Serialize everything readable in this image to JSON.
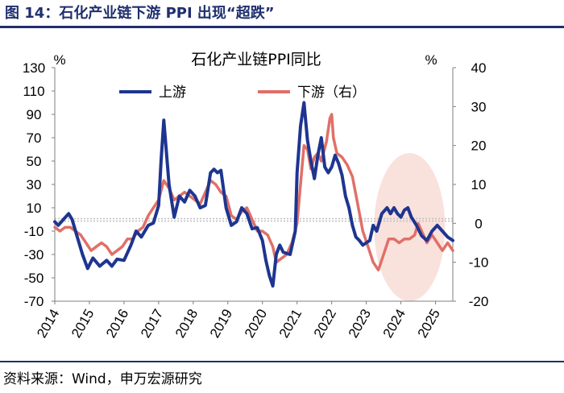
{
  "figure_title": "图 14：石化产业链下游 PPI 出现“超跌”",
  "source": "资料来源：Wind，申万宏源研究",
  "colors": {
    "upstream": "#1e3590",
    "downstream": "#e07068",
    "ellipse": "#f9e1dc",
    "frame": "#1f2f6e"
  },
  "chart_data": {
    "type": "line",
    "title": "石化产业链PPI同比",
    "y_left_unit": "%",
    "y_right_unit": "%",
    "x_ticks": [
      "2014",
      "2015",
      "2016",
      "2017",
      "2018",
      "2019",
      "2020",
      "2021",
      "2022",
      "2023",
      "2024",
      "2025"
    ],
    "x_range": [
      2014.0,
      2025.5
    ],
    "y_left": {
      "range": [
        -70,
        130
      ],
      "ticks": [
        130,
        110,
        90,
        70,
        50,
        30,
        10,
        -10,
        -30,
        -50,
        -70
      ]
    },
    "y_right": {
      "range": [
        -20,
        40
      ],
      "ticks": [
        40,
        30,
        20,
        10,
        0,
        -10,
        -20
      ]
    },
    "series": [
      {
        "name": "上游",
        "axis": "left",
        "x": [
          2014.0,
          2014.1,
          2014.25,
          2014.4,
          2014.5,
          2014.65,
          2014.8,
          2014.95,
          2015.1,
          2015.3,
          2015.5,
          2015.65,
          2015.8,
          2016.0,
          2016.2,
          2016.35,
          2016.5,
          2016.7,
          2016.85,
          2017.0,
          2017.07,
          2017.15,
          2017.3,
          2017.45,
          2017.6,
          2017.75,
          2017.9,
          2018.05,
          2018.2,
          2018.35,
          2018.5,
          2018.6,
          2018.7,
          2018.8,
          2018.95,
          2019.1,
          2019.25,
          2019.4,
          2019.55,
          2019.7,
          2019.85,
          2020.0,
          2020.1,
          2020.2,
          2020.3,
          2020.4,
          2020.5,
          2020.6,
          2020.8,
          2020.95,
          2021.0,
          2021.1,
          2021.2,
          2021.3,
          2021.4,
          2021.5,
          2021.6,
          2021.7,
          2021.8,
          2021.9,
          2022.0,
          2022.1,
          2022.2,
          2022.3,
          2022.4,
          2022.5,
          2022.6,
          2022.7,
          2022.8,
          2022.9,
          2023.0,
          2023.1,
          2023.2,
          2023.3,
          2023.45,
          2023.6,
          2023.7,
          2023.8,
          2023.9,
          2024.0,
          2024.1,
          2024.2,
          2024.3,
          2024.45,
          2024.6,
          2024.75,
          2024.9,
          2025.05,
          2025.2,
          2025.35,
          2025.5
        ],
        "values": [
          -2,
          -5,
          0,
          5,
          0,
          -15,
          -30,
          -42,
          -33,
          -40,
          -35,
          -40,
          -34,
          -35,
          -22,
          -10,
          -15,
          -5,
          -3,
          12,
          50,
          85,
          30,
          2,
          20,
          15,
          25,
          20,
          10,
          12,
          40,
          43,
          40,
          42,
          10,
          -5,
          -2,
          10,
          5,
          -8,
          -7,
          -18,
          -35,
          -48,
          -57,
          -30,
          -22,
          -28,
          -30,
          -10,
          40,
          80,
          100,
          68,
          50,
          35,
          55,
          70,
          45,
          40,
          45,
          55,
          48,
          38,
          20,
          10,
          -5,
          -15,
          -18,
          -22,
          -20,
          -18,
          -5,
          -10,
          5,
          10,
          5,
          10,
          5,
          2,
          8,
          10,
          2,
          -5,
          -14,
          -18,
          -10,
          -5,
          -10,
          -15,
          -18
        ]
      },
      {
        "name": "下游（右）",
        "axis": "right",
        "x": [
          2014.0,
          2014.15,
          2014.3,
          2014.45,
          2014.6,
          2014.75,
          2014.9,
          2015.05,
          2015.2,
          2015.35,
          2015.5,
          2015.65,
          2015.8,
          2015.95,
          2016.1,
          2016.25,
          2016.4,
          2016.55,
          2016.7,
          2016.85,
          2017.0,
          2017.15,
          2017.3,
          2017.45,
          2017.6,
          2017.75,
          2017.9,
          2018.05,
          2018.2,
          2018.35,
          2018.5,
          2018.65,
          2018.8,
          2018.95,
          2019.1,
          2019.25,
          2019.4,
          2019.55,
          2019.7,
          2019.85,
          2020.0,
          2020.15,
          2020.3,
          2020.4,
          2020.55,
          2020.7,
          2020.85,
          2021.0,
          2021.1,
          2021.2,
          2021.3,
          2021.4,
          2021.5,
          2021.6,
          2021.7,
          2021.85,
          2021.95,
          2022.0,
          2022.05,
          2022.15,
          2022.3,
          2022.45,
          2022.6,
          2022.75,
          2022.9,
          2023.05,
          2023.2,
          2023.35,
          2023.5,
          2023.65,
          2023.8,
          2023.95,
          2024.1,
          2024.25,
          2024.4,
          2024.5,
          2024.6,
          2024.75,
          2024.9,
          2025.05,
          2025.2,
          2025.35,
          2025.5
        ],
        "values": [
          -1,
          -2,
          -1,
          -1,
          -2,
          -3,
          -5,
          -7,
          -6,
          -5,
          -6,
          -8,
          -7,
          -6,
          -4,
          -4,
          -2,
          -1,
          2,
          4,
          6,
          11,
          9,
          6,
          7,
          8,
          7,
          6,
          5,
          8,
          11,
          10,
          8,
          7,
          2,
          1,
          3,
          4,
          1,
          -2,
          -2,
          -3,
          -6,
          -10,
          -9,
          -8,
          -5,
          0,
          10,
          20,
          19,
          14,
          17,
          18,
          16,
          21,
          27,
          28,
          22,
          18,
          17,
          15,
          12,
          5,
          -2,
          -6,
          -10,
          -12,
          -8,
          -4,
          -4,
          -5,
          -4,
          -4,
          -3,
          0,
          -2,
          -5,
          -3,
          -5,
          -7,
          -5,
          -7
        ]
      }
    ],
    "legend": [
      "上游",
      "下游（右）"
    ],
    "legend_position": "top",
    "zero_line": "dotted",
    "annotation": "shaded ellipse over 2023–2025"
  }
}
